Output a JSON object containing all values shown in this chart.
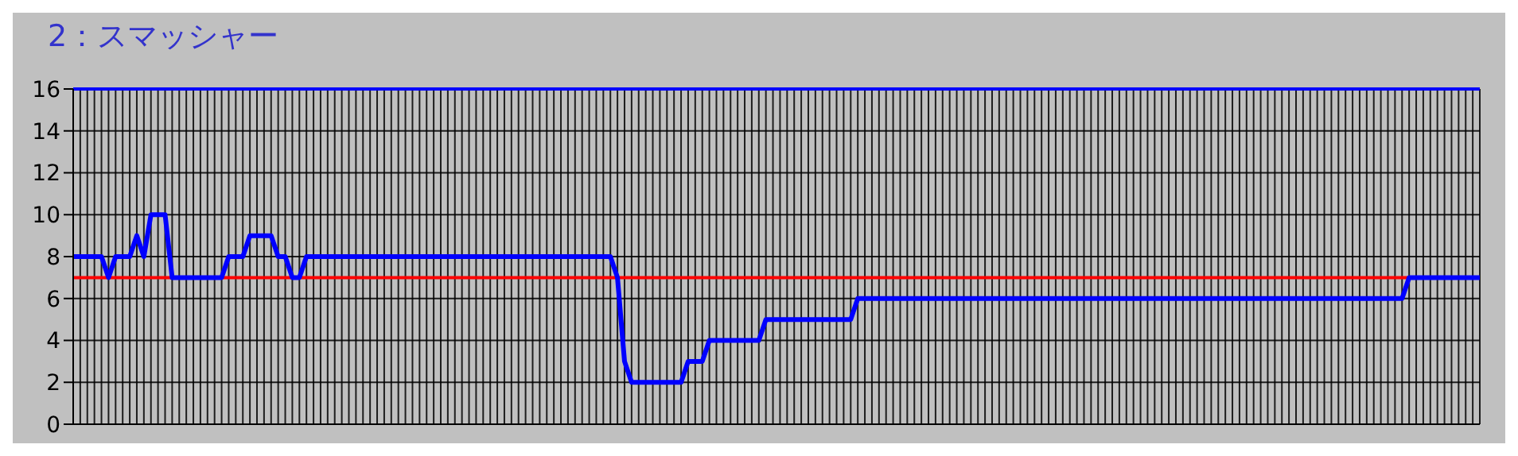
{
  "chart_data": {
    "type": "line",
    "title": "2：スマッシャー",
    "categories": [
      null,
      null,
      null,
      null,
      null,
      null,
      null,
      null,
      null,
      null,
      null,
      null,
      null,
      null,
      null,
      null,
      null,
      null,
      null,
      null,
      null,
      null,
      null,
      null,
      null,
      null,
      null,
      null,
      null,
      null,
      null,
      null,
      null,
      null,
      null,
      null,
      null,
      null,
      null,
      null,
      null,
      null,
      null,
      null,
      null,
      null,
      null,
      null,
      null,
      null,
      null,
      null,
      null,
      null,
      null,
      null,
      null,
      null,
      null,
      null,
      null,
      null,
      null,
      null,
      null,
      null,
      null,
      null,
      null,
      null,
      null,
      null,
      null,
      null,
      null,
      null,
      null,
      null,
      null,
      null,
      null,
      null,
      null,
      null,
      null,
      null,
      null,
      null,
      null,
      null,
      null,
      null,
      null,
      null,
      null,
      null,
      null,
      null,
      null,
      null,
      null,
      null,
      null,
      null,
      null,
      null,
      null,
      null,
      null,
      null,
      null,
      null,
      null,
      null,
      null,
      null,
      null,
      null,
      null,
      null,
      null,
      null,
      null,
      null,
      null,
      null,
      null,
      null,
      null,
      null,
      null,
      null,
      null,
      null,
      null,
      null,
      null,
      null,
      null,
      null,
      null,
      null,
      null,
      null,
      null,
      null,
      null,
      null,
      null,
      null,
      null,
      null,
      null,
      null,
      null,
      null,
      null,
      null,
      null,
      null,
      null,
      null,
      null,
      null,
      null,
      null,
      null,
      null,
      null,
      null,
      null,
      null,
      null,
      null,
      null,
      null,
      null,
      null,
      null,
      null,
      null,
      null,
      null,
      null,
      null,
      null,
      null,
      null,
      null,
      null,
      null,
      null,
      null,
      null,
      null,
      null,
      null,
      null,
      null,
      null
    ],
    "series": [
      {
        "color": "#0000ff",
        "values": [
          8,
          8,
          8,
          8,
          8,
          7,
          8,
          8,
          8,
          9,
          8,
          10,
          10,
          10,
          7,
          7,
          7,
          7,
          7,
          7,
          7,
          7,
          8,
          8,
          8,
          9,
          9,
          9,
          9,
          8,
          8,
          7,
          7,
          8,
          8,
          8,
          8,
          8,
          8,
          8,
          8,
          8,
          8,
          8,
          8,
          8,
          8,
          8,
          8,
          8,
          8,
          8,
          8,
          8,
          8,
          8,
          8,
          8,
          8,
          8,
          8,
          8,
          8,
          8,
          8,
          8,
          8,
          8,
          8,
          8,
          8,
          8,
          8,
          8,
          8,
          8,
          8,
          7,
          3,
          2,
          2,
          2,
          2,
          2,
          2,
          2,
          2,
          3,
          3,
          3,
          4,
          4,
          4,
          4,
          4,
          4,
          4,
          4,
          5,
          5,
          5,
          5,
          5,
          5,
          5,
          5,
          5,
          5,
          5,
          5,
          5,
          6,
          6,
          6,
          6,
          6,
          6,
          6,
          6,
          6,
          6,
          6,
          6,
          6,
          6,
          6,
          6,
          6,
          6,
          6,
          6,
          6,
          6,
          6,
          6,
          6,
          6,
          6,
          6,
          6,
          6,
          6,
          6,
          6,
          6,
          6,
          6,
          6,
          6,
          6,
          6,
          6,
          6,
          6,
          6,
          6,
          6,
          6,
          6,
          6,
          6,
          6,
          6,
          6,
          6,
          6,
          6,
          6,
          6,
          6,
          6,
          6,
          6,
          6,
          6,
          6,
          6,
          6,
          6,
          6,
          6,
          6,
          6,
          6,
          6,
          6,
          6,
          6,
          6,
          7,
          7,
          7,
          7,
          7,
          7,
          7,
          7,
          7,
          7,
          7
        ]
      }
    ],
    "ylim": [
      0,
      16
    ],
    "yticks": [
      0,
      2,
      4,
      6,
      8,
      10,
      12,
      14,
      16
    ],
    "ref_lines": [
      {
        "axis": "y",
        "value": 7,
        "color": "#ff0000"
      },
      {
        "axis": "y",
        "value": 16,
        "color": "#0000ff"
      }
    ],
    "grid": true,
    "legend": false,
    "marker": "none",
    "line_style": "solid",
    "tick_labels": "y"
  }
}
